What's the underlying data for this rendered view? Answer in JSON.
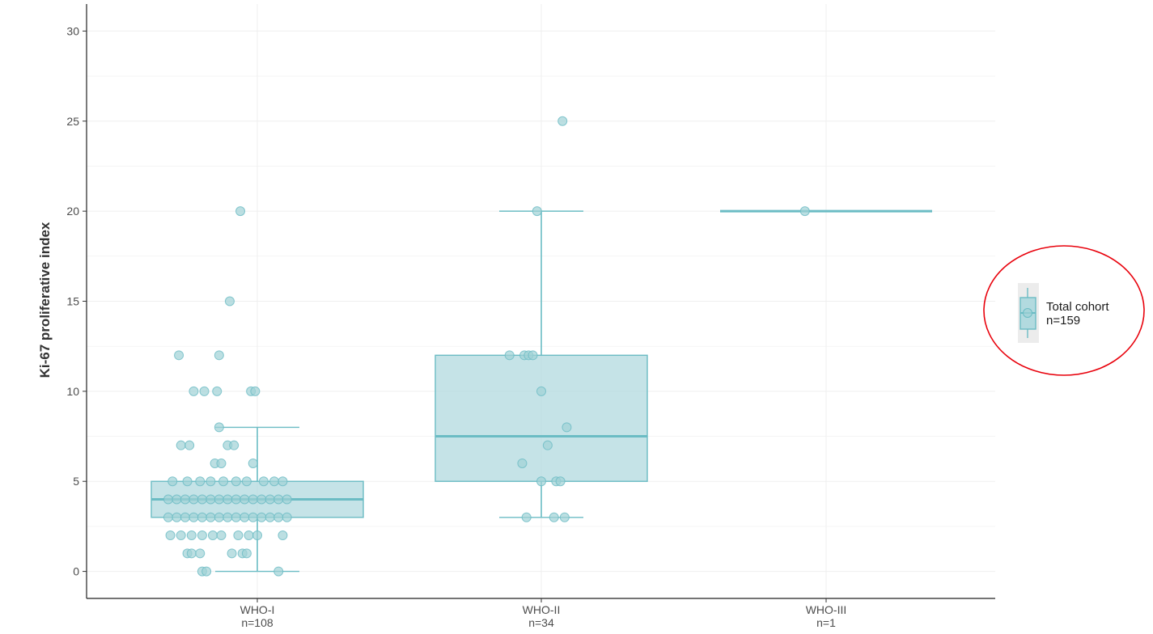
{
  "chart_data": {
    "type": "boxplot",
    "title": "",
    "xlabel": "",
    "ylabel": "Ki-67 proliferative index",
    "ylim": [
      -1.5,
      31.5
    ],
    "yticks": [
      0,
      5,
      10,
      15,
      20,
      25,
      30
    ],
    "grid": true,
    "legend_position": "right",
    "colors": {
      "fill": "#b2dadf",
      "stroke": "#6bbcc4",
      "point": "#9fd1d6",
      "highlight": "#e8000b"
    },
    "categories": [
      {
        "label": "WHO-I",
        "n_label": "n=108"
      },
      {
        "label": "WHO-II",
        "n_label": "n=34"
      },
      {
        "label": "WHO-III",
        "n_label": "n=1"
      }
    ],
    "boxes": [
      {
        "q1": 3,
        "median": 4,
        "q3": 5,
        "whisker_low": 0,
        "whisker_high": 8
      },
      {
        "q1": 5,
        "median": 7.5,
        "q3": 12,
        "whisker_low": 3,
        "whisker_high": 20
      },
      {
        "q1": 20,
        "median": 20,
        "q3": 20,
        "whisker_low": 20,
        "whisker_high": 20
      }
    ],
    "points": [
      [
        {
          "x": -0.08,
          "y": 20
        },
        {
          "x": -0.13,
          "y": 15
        },
        {
          "x": -0.18,
          "y": 12
        },
        {
          "x": -0.37,
          "y": 12
        },
        {
          "x": -0.3,
          "y": 10
        },
        {
          "x": -0.25,
          "y": 10
        },
        {
          "x": -0.19,
          "y": 10
        },
        {
          "x": -0.03,
          "y": 10
        },
        {
          "x": -0.01,
          "y": 10
        },
        {
          "x": -0.18,
          "y": 8
        },
        {
          "x": -0.36,
          "y": 7
        },
        {
          "x": -0.32,
          "y": 7
        },
        {
          "x": -0.14,
          "y": 7
        },
        {
          "x": -0.11,
          "y": 7
        },
        {
          "x": -0.2,
          "y": 6
        },
        {
          "x": -0.17,
          "y": 6
        },
        {
          "x": -0.02,
          "y": 6
        },
        {
          "x": -0.4,
          "y": 5
        },
        {
          "x": -0.33,
          "y": 5
        },
        {
          "x": -0.27,
          "y": 5
        },
        {
          "x": -0.22,
          "y": 5
        },
        {
          "x": -0.16,
          "y": 5
        },
        {
          "x": -0.1,
          "y": 5
        },
        {
          "x": -0.05,
          "y": 5
        },
        {
          "x": 0.03,
          "y": 5
        },
        {
          "x": 0.08,
          "y": 5
        },
        {
          "x": 0.12,
          "y": 5
        },
        {
          "x": -0.42,
          "y": 4
        },
        {
          "x": -0.38,
          "y": 4
        },
        {
          "x": -0.34,
          "y": 4
        },
        {
          "x": -0.3,
          "y": 4
        },
        {
          "x": -0.26,
          "y": 4
        },
        {
          "x": -0.22,
          "y": 4
        },
        {
          "x": -0.18,
          "y": 4
        },
        {
          "x": -0.14,
          "y": 4
        },
        {
          "x": -0.1,
          "y": 4
        },
        {
          "x": -0.06,
          "y": 4
        },
        {
          "x": -0.02,
          "y": 4
        },
        {
          "x": 0.02,
          "y": 4
        },
        {
          "x": 0.06,
          "y": 4
        },
        {
          "x": 0.1,
          "y": 4
        },
        {
          "x": 0.14,
          "y": 4
        },
        {
          "x": -0.42,
          "y": 3
        },
        {
          "x": -0.38,
          "y": 3
        },
        {
          "x": -0.34,
          "y": 3
        },
        {
          "x": -0.3,
          "y": 3
        },
        {
          "x": -0.26,
          "y": 3
        },
        {
          "x": -0.22,
          "y": 3
        },
        {
          "x": -0.18,
          "y": 3
        },
        {
          "x": -0.14,
          "y": 3
        },
        {
          "x": -0.1,
          "y": 3
        },
        {
          "x": -0.06,
          "y": 3
        },
        {
          "x": -0.02,
          "y": 3
        },
        {
          "x": 0.02,
          "y": 3
        },
        {
          "x": 0.06,
          "y": 3
        },
        {
          "x": 0.1,
          "y": 3
        },
        {
          "x": 0.14,
          "y": 3
        },
        {
          "x": -0.41,
          "y": 2
        },
        {
          "x": -0.36,
          "y": 2
        },
        {
          "x": -0.31,
          "y": 2
        },
        {
          "x": -0.26,
          "y": 2
        },
        {
          "x": -0.21,
          "y": 2
        },
        {
          "x": -0.17,
          "y": 2
        },
        {
          "x": -0.09,
          "y": 2
        },
        {
          "x": -0.04,
          "y": 2
        },
        {
          "x": 0.0,
          "y": 2
        },
        {
          "x": 0.12,
          "y": 2
        },
        {
          "x": -0.33,
          "y": 1
        },
        {
          "x": -0.31,
          "y": 1
        },
        {
          "x": -0.27,
          "y": 1
        },
        {
          "x": -0.12,
          "y": 1
        },
        {
          "x": -0.07,
          "y": 1
        },
        {
          "x": -0.05,
          "y": 1
        },
        {
          "x": -0.26,
          "y": 0
        },
        {
          "x": -0.24,
          "y": 0
        },
        {
          "x": 0.1,
          "y": 0
        }
      ],
      [
        {
          "x": 0.1,
          "y": 25
        },
        {
          "x": -0.02,
          "y": 20
        },
        {
          "x": -0.15,
          "y": 12
        },
        {
          "x": -0.08,
          "y": 12
        },
        {
          "x": -0.06,
          "y": 12
        },
        {
          "x": -0.04,
          "y": 12
        },
        {
          "x": 0.0,
          "y": 10
        },
        {
          "x": 0.12,
          "y": 8
        },
        {
          "x": 0.03,
          "y": 7
        },
        {
          "x": -0.09,
          "y": 6
        },
        {
          "x": 0.0,
          "y": 5
        },
        {
          "x": 0.07,
          "y": 5
        },
        {
          "x": 0.09,
          "y": 5
        },
        {
          "x": -0.07,
          "y": 3
        },
        {
          "x": 0.06,
          "y": 3
        },
        {
          "x": 0.11,
          "y": 3
        }
      ],
      [
        {
          "x": -0.1,
          "y": 20
        }
      ]
    ],
    "legend": {
      "label_line1": "Total cohort",
      "label_line2": "n=159"
    }
  }
}
